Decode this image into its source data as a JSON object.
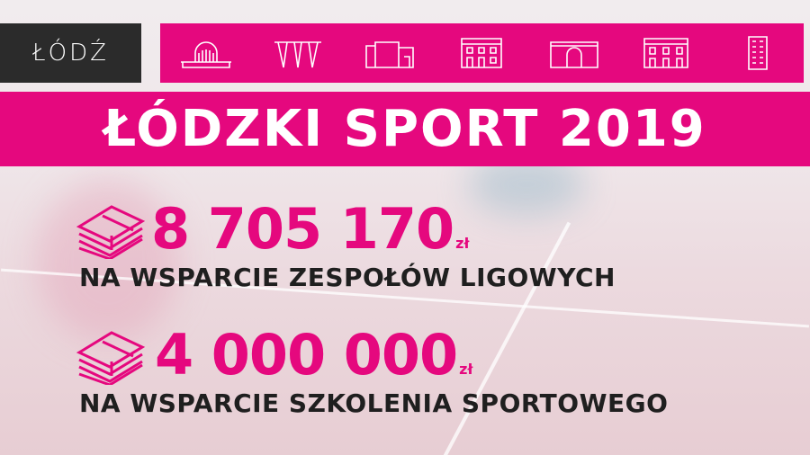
{
  "logo": {
    "text": "ŁÓDŹ"
  },
  "icons": [
    "railway-station-icon",
    "umbrella-pavilion-icon",
    "modern-building-icon",
    "tenement-icon",
    "gateway-building-icon",
    "palace-icon",
    "tower-block-icon"
  ],
  "title": "ŁÓDZKI SPORT 2019",
  "items": [
    {
      "icon": "money-stack-icon",
      "amount": "8 705 170",
      "currency": "zł",
      "label": "NA WSPARCIE ZESPOŁÓW LIGOWYCH"
    },
    {
      "icon": "money-stack-icon",
      "amount": "4 000 000",
      "currency": "zł",
      "label": "NA WSPARCIE SZKOLENIA SPORTOWEGO"
    }
  ],
  "colors": {
    "brand": "#e5087e",
    "logo_bg": "#2b2b2b",
    "text": "#1f1f1f"
  }
}
